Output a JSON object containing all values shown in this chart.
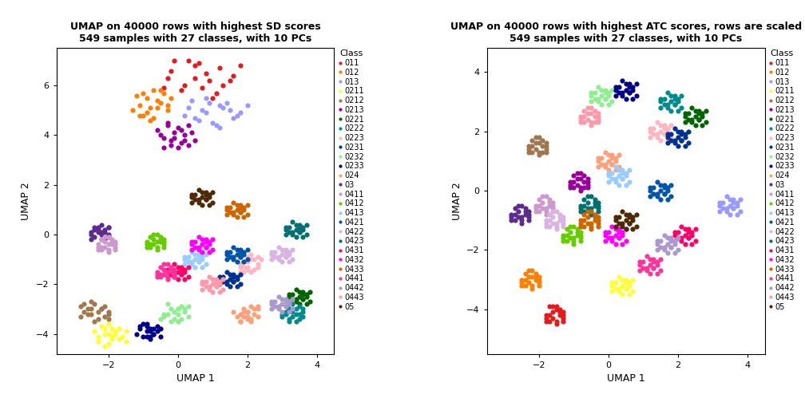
{
  "title1": "UMAP on 40000 rows with highest SD scores\n549 samples with 27 classes, with 10 PCs",
  "title2": "UMAP on 40000 rows with highest ATC scores, rows are scaled\n549 samples with 27 classes, with 10 PCs",
  "xlabel": "UMAP 1",
  "ylabel": "UMAP 2",
  "classes": [
    "011",
    "012",
    "013",
    "0211",
    "0212",
    "0213",
    "0221",
    "0222",
    "0223",
    "0231",
    "0232",
    "0233",
    "024",
    "03",
    "0411",
    "0412",
    "0413",
    "0421",
    "0422",
    "0423",
    "0431",
    "0432",
    "0433",
    "0441",
    "0442",
    "0443",
    "05"
  ],
  "colors": [
    "#E41A1C",
    "#FF8000",
    "#9999FF",
    "#FFFF33",
    "#A07850",
    "#990099",
    "#006400",
    "#008B8B",
    "#FFB6C1",
    "#003090",
    "#90EE90",
    "#00008B",
    "#FFA07A",
    "#5B2C8D",
    "#CC99CC",
    "#66CC00",
    "#99CCFF",
    "#0055AA",
    "#D8B4E2",
    "#007070",
    "#FF0066",
    "#FF00FF",
    "#CC6600",
    "#FF3399",
    "#AA99CC",
    "#FF99AA",
    "#4E2A04"
  ],
  "xlim1": [
    -3.5,
    4.5
  ],
  "ylim1": [
    -4.8,
    7.5
  ],
  "xlim2": [
    -3.5,
    4.5
  ],
  "ylim2": [
    -5.5,
    4.8
  ],
  "xticks1": [
    -2,
    0,
    2,
    4
  ],
  "yticks1": [
    -4,
    -2,
    0,
    2,
    4,
    6
  ],
  "xticks2": [
    -2,
    0,
    2,
    4
  ],
  "yticks2": [
    -4,
    -2,
    0,
    2,
    4
  ],
  "marker_size": 20,
  "legend_fontsize": 7.0,
  "legend_title_fontsize": 8.0,
  "axis_fontsize": 9,
  "title_fontsize": 9
}
